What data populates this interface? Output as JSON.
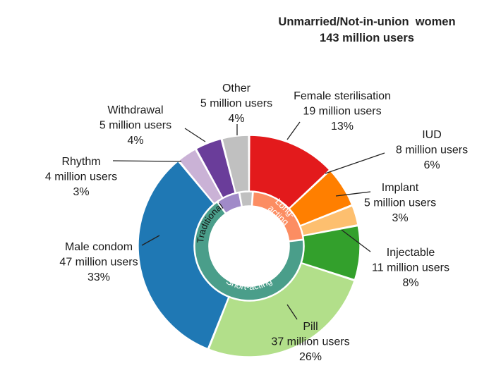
{
  "chart_data": {
    "type": "pie",
    "title": "Unmarried/Not-in-union  women",
    "subtitle": "143 million users",
    "outer_ring": [
      {
        "label": "Female sterilisation",
        "users": "19 million users",
        "pct": 13,
        "color": "#e31a1c"
      },
      {
        "label": "IUD",
        "users": "8 million users",
        "pct": 6,
        "color": "#ff7f00"
      },
      {
        "label": "Implant",
        "users": "5 million users",
        "pct": 3,
        "color": "#fdbf6f"
      },
      {
        "label": "Injectable",
        "users": "11 million users",
        "pct": 8,
        "color": "#33a02c"
      },
      {
        "label": "Pill",
        "users": "37 million users",
        "pct": 26,
        "color": "#b2df8a"
      },
      {
        "label": "Male condom",
        "users": "47 million users",
        "pct": 33,
        "color": "#1f78b4"
      },
      {
        "label": "Rhythm",
        "users": "4 million users",
        "pct": 3,
        "color": "#cab2d6"
      },
      {
        "label": "Withdrawal",
        "users": "5 million users",
        "pct": 4,
        "color": "#6a3d9a"
      },
      {
        "label": "Other",
        "users": "5 million users",
        "pct": 4,
        "color": "#c0c0c0"
      }
    ],
    "inner_ring": [
      {
        "label": "Long-acting",
        "pct": 22,
        "color": "#fc8d62"
      },
      {
        "label": "Short-acting",
        "pct": 67,
        "color": "#4a9e8a"
      },
      {
        "label": "Traditional",
        "pct": 7,
        "color": "#a08ac8"
      },
      {
        "label": "",
        "pct": 4,
        "color": "#c0c0c0"
      }
    ]
  }
}
